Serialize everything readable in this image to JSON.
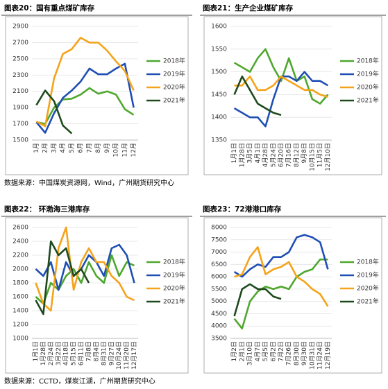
{
  "chart_data": [
    {
      "type": "line",
      "title": "图表20：国有重点煤矿库存",
      "categories": [
        "1月",
        "2月",
        "3月",
        "4月",
        "5月",
        "6月",
        "7月",
        "8月",
        "9月",
        "10月",
        "11月",
        "12月"
      ],
      "ylim": [
        1500,
        2900
      ],
      "yticks": [
        1500,
        1700,
        1900,
        2100,
        2300,
        2500,
        2700,
        2900
      ],
      "series": [
        {
          "name": "2018年",
          "color": "#4ea72e",
          "values": [
            1720,
            1700,
            1900,
            2000,
            2010,
            2060,
            2140,
            2070,
            2100,
            2060,
            1880,
            1810
          ]
        },
        {
          "name": "2019年",
          "color": "#1f4eb4",
          "values": [
            1720,
            1590,
            1830,
            2020,
            2110,
            2220,
            2380,
            2310,
            2310,
            2380,
            2440,
            1900
          ]
        },
        {
          "name": "2020年",
          "color": "#f5a31a",
          "values": [
            1730,
            1670,
            2260,
            2560,
            2620,
            2760,
            2700,
            2700,
            2600,
            2470,
            2350,
            2110
          ]
        },
        {
          "name": "2021年",
          "color": "#1e4a1e",
          "values": [
            1930,
            2110,
            1980,
            1680,
            1580,
            null,
            null,
            null,
            null,
            null,
            null,
            null
          ]
        }
      ]
    },
    {
      "type": "line",
      "title": "图表21：生产企业煤矿库存",
      "categories": [
        "1月1日",
        "1月28日",
        "3月5日",
        "4月1日",
        "4月28日",
        "5月24日",
        "6月20日",
        "7月16日",
        "8月12日",
        "9月8日",
        "10月15日",
        "11月5日",
        "12月10日"
      ],
      "ylim": [
        1350,
        1600
      ],
      "yticks": [
        1350,
        1400,
        1450,
        1500,
        1550,
        1600
      ],
      "series": [
        {
          "name": "2018年",
          "color": "#4ea72e",
          "values": [
            1520,
            1510,
            1500,
            1530,
            1550,
            1510,
            1480,
            1530,
            1480,
            1490,
            1440,
            1430,
            1450
          ]
        },
        {
          "name": "2019年",
          "color": "#1f4eb4",
          "values": [
            1420,
            1410,
            1400,
            1400,
            1380,
            1440,
            1490,
            1490,
            1480,
            1500,
            1480,
            1480,
            1470
          ]
        },
        {
          "name": "2020年",
          "color": "#f5a31a",
          "values": [
            1470,
            1470,
            1490,
            1460,
            1460,
            1470,
            1490,
            1480,
            1470,
            1460,
            1460,
            1450,
            1445
          ]
        },
        {
          "name": "2021年",
          "color": "#1e4a1e",
          "values": [
            1450,
            1490,
            1460,
            1430,
            1420,
            1410,
            1405,
            null,
            null,
            null,
            null,
            null,
            null
          ]
        }
      ]
    },
    {
      "type": "line",
      "title": "图表22：  环渤海三港库存",
      "categories": [
        "1月1日",
        "1月28日",
        "2月24日",
        "3月22日",
        "4月18日",
        "5月15日",
        "6月11日",
        "7月8日",
        "8月4日",
        "8月31日",
        "9月27日",
        "10月24日",
        "11月20日",
        "12月17日"
      ],
      "ylim": [
        1000,
        2600
      ],
      "yticks": [
        1000,
        1200,
        1400,
        1600,
        1800,
        2000,
        2200,
        2400,
        2600
      ],
      "series": [
        {
          "name": "2018年",
          "color": "#4ea72e",
          "values": [
            1600,
            1500,
            1800,
            1700,
            1900,
            2000,
            1800,
            2100,
            1900,
            1800,
            2200,
            1900,
            2100,
            2050
          ]
        },
        {
          "name": "2019年",
          "color": "#1f4eb4",
          "values": [
            2000,
            1900,
            2100,
            1700,
            2100,
            1900,
            2000,
            2200,
            2100,
            1900,
            2300,
            2350,
            2200,
            1800
          ]
        },
        {
          "name": "2020年",
          "color": "#f5a31a",
          "values": [
            1800,
            1500,
            1400,
            2300,
            2600,
            1700,
            2100,
            2300,
            2100,
            2100,
            1900,
            1800,
            1600,
            1550
          ]
        },
        {
          "name": "2021年",
          "color": "#1e4a1e",
          "values": [
            1550,
            1350,
            2400,
            2200,
            2300,
            1900,
            2000,
            1800,
            null,
            null,
            null,
            null,
            null,
            null
          ]
        }
      ]
    },
    {
      "type": "line",
      "title": "图表23：72港港口库存",
      "categories": [
        "1月2日",
        "2月1日",
        "3月10日",
        "4月7日",
        "5月5日",
        "6月2日",
        "7月2日",
        "7月26日",
        "8月30日",
        "9月30日",
        "10月31日",
        "11月24日",
        "12月19日"
      ],
      "ylim": [
        3500,
        8000
      ],
      "yticks": [
        3500,
        4000,
        4500,
        5000,
        5500,
        6000,
        6500,
        7000,
        7500,
        8000
      ],
      "series": [
        {
          "name": "2018年",
          "color": "#4ea72e",
          "values": [
            4300,
            3900,
            5000,
            5400,
            5600,
            5500,
            5600,
            5500,
            6000,
            6200,
            6300,
            6700,
            6700
          ]
        },
        {
          "name": "2019年",
          "color": "#1f4eb4",
          "values": [
            6200,
            6000,
            6300,
            6500,
            6400,
            6800,
            6800,
            7000,
            7600,
            7700,
            7600,
            7400,
            6300
          ]
        },
        {
          "name": "2020年",
          "color": "#f5a31a",
          "values": [
            6000,
            6100,
            6800,
            7200,
            6100,
            6300,
            6400,
            6600,
            6000,
            5800,
            5500,
            5300,
            4800
          ]
        },
        {
          "name": "2021年",
          "color": "#1e4a1e",
          "values": [
            4400,
            5500,
            5700,
            5500,
            5500,
            5200,
            5100,
            null,
            null,
            null,
            null,
            null,
            null
          ]
        }
      ]
    }
  ],
  "sources": [
    "数据来源：中国煤炭资源网，Wind，广州期货研究中心",
    "数据来源：CCTD，煤炭江湖，广州期货研究中心"
  ]
}
